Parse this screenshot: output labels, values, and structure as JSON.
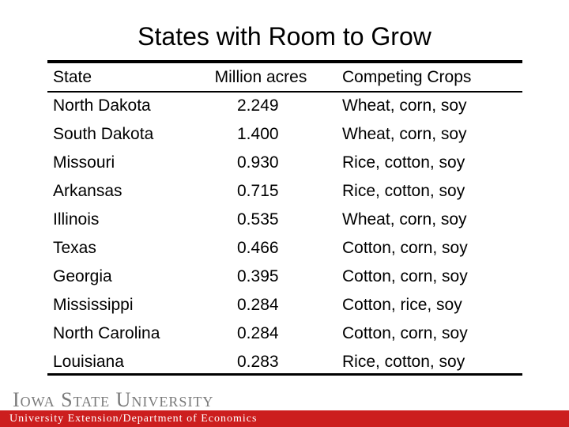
{
  "title": "States with Room to Grow",
  "table": {
    "headers": {
      "state": "State",
      "acres": "Million acres",
      "crops": "Competing Crops"
    },
    "rows": [
      {
        "state": "North Dakota",
        "acres": "2.249",
        "crops": "Wheat, corn, soy"
      },
      {
        "state": "South Dakota",
        "acres": "1.400",
        "crops": "Wheat, corn, soy"
      },
      {
        "state": "Missouri",
        "acres": "0.930",
        "crops": "Rice, cotton, soy"
      },
      {
        "state": "Arkansas",
        "acres": "0.715",
        "crops": "Rice, cotton, soy"
      },
      {
        "state": "Illinois",
        "acres": "0.535",
        "crops": "Wheat, corn, soy"
      },
      {
        "state": "Texas",
        "acres": "0.466",
        "crops": "Cotton, corn, soy"
      },
      {
        "state": "Georgia",
        "acres": "0.395",
        "crops": "Cotton, corn, soy"
      },
      {
        "state": "Mississippi",
        "acres": "0.284",
        "crops": "Cotton, rice, soy"
      },
      {
        "state": "North Carolina",
        "acres": "0.284",
        "crops": "Cotton, corn, soy"
      },
      {
        "state": "Louisiana",
        "acres": "0.283",
        "crops": "Rice, cotton, soy"
      }
    ]
  },
  "footer": {
    "logo_text": "Iowa State University",
    "department": "University Extension/Department of Economics",
    "band_color": "#cc1e1e",
    "logo_color": "#7a7a7a"
  }
}
